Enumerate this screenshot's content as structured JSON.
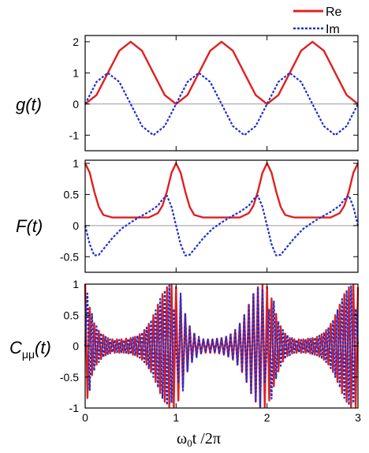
{
  "legend": {
    "re_label": "Re",
    "im_label": "Im",
    "re_color": "#e0201f",
    "im_color": "#1f2fd0"
  },
  "xaxis": {
    "label_main": "ω",
    "label_sub": "0",
    "label_rest": "t /2π",
    "ticks": [
      "0",
      "1",
      "2",
      "3"
    ]
  },
  "chart_data": [
    {
      "type": "line",
      "ylabel": "g(t)",
      "xlim": [
        0,
        3
      ],
      "ylim": [
        -1.5,
        2.2
      ],
      "yticks": [
        "2",
        "1",
        "0",
        "-1"
      ],
      "x": [
        0,
        0.125,
        0.25,
        0.375,
        0.5,
        0.625,
        0.75,
        0.875,
        1.0,
        1.125,
        1.25,
        1.375,
        1.5,
        1.625,
        1.75,
        1.875,
        2.0,
        2.125,
        2.25,
        2.375,
        2.5,
        2.625,
        2.75,
        2.875,
        3.0
      ],
      "series": [
        {
          "name": "Re",
          "values": [
            0,
            0.29,
            1.0,
            1.71,
            2.0,
            1.71,
            1.0,
            0.29,
            0,
            0.29,
            1.0,
            1.71,
            2.0,
            1.71,
            1.0,
            0.29,
            0,
            0.29,
            1.0,
            1.71,
            2.0,
            1.71,
            1.0,
            0.29,
            0
          ]
        },
        {
          "name": "Im",
          "values": [
            0,
            0.71,
            1.0,
            0.71,
            0,
            -0.71,
            -1.0,
            -0.71,
            0,
            0.71,
            1.0,
            0.71,
            0,
            -0.71,
            -1.0,
            -0.71,
            0,
            0.71,
            1.0,
            0.71,
            0,
            -0.71,
            -1.0,
            -0.71,
            0
          ]
        }
      ]
    },
    {
      "type": "line",
      "ylabel": "F(t)",
      "xlim": [
        0,
        3
      ],
      "ylim": [
        -0.75,
        1.05
      ],
      "yticks": [
        "1",
        "0.5",
        "0",
        "-0.5"
      ],
      "x": [
        0,
        0.05,
        0.1,
        0.15,
        0.2,
        0.3,
        0.4,
        0.5,
        0.6,
        0.7,
        0.8,
        0.85,
        0.9,
        0.95,
        1.0,
        1.05,
        1.1,
        1.15,
        1.2,
        1.3,
        1.4,
        1.5,
        1.6,
        1.7,
        1.8,
        1.85,
        1.9,
        1.95,
        2.0,
        2.05,
        2.1,
        2.15,
        2.2,
        2.3,
        2.4,
        2.5,
        2.6,
        2.7,
        2.8,
        2.85,
        2.9,
        2.95,
        3.0
      ],
      "series": [
        {
          "name": "Re",
          "values": [
            1.0,
            0.85,
            0.55,
            0.3,
            0.17,
            0.13,
            0.13,
            0.13,
            0.13,
            0.13,
            0.2,
            0.32,
            0.55,
            0.85,
            1.0,
            0.85,
            0.55,
            0.3,
            0.17,
            0.13,
            0.13,
            0.13,
            0.13,
            0.13,
            0.2,
            0.32,
            0.55,
            0.85,
            1.0,
            0.85,
            0.55,
            0.3,
            0.17,
            0.13,
            0.13,
            0.13,
            0.13,
            0.13,
            0.2,
            0.32,
            0.55,
            0.85,
            1.0
          ]
        },
        {
          "name": "Im",
          "values": [
            0,
            -0.3,
            -0.48,
            -0.47,
            -0.38,
            -0.2,
            -0.05,
            0.05,
            0.14,
            0.22,
            0.32,
            0.42,
            0.48,
            0.3,
            0,
            -0.3,
            -0.48,
            -0.47,
            -0.38,
            -0.2,
            -0.05,
            0.05,
            0.14,
            0.22,
            0.32,
            0.42,
            0.48,
            0.3,
            0,
            -0.3,
            -0.48,
            -0.47,
            -0.38,
            -0.2,
            -0.05,
            0.05,
            0.14,
            0.22,
            0.32,
            0.42,
            0.48,
            0.3,
            0
          ]
        }
      ]
    },
    {
      "type": "line",
      "ylabel": "C",
      "ylabel_sub": "μμ",
      "ylabel_rest": "(t)",
      "xlim": [
        0,
        3
      ],
      "ylim": [
        -1,
        1
      ],
      "yticks": [
        "1",
        "0.5",
        "0",
        "-0.5",
        "-1"
      ],
      "x": [
        0,
        0.025,
        0.05,
        0.075,
        0.1,
        0.125,
        0.15,
        0.175,
        0.2,
        0.225,
        0.25,
        0.275,
        0.3,
        0.325,
        0.35,
        0.375,
        0.4,
        0.425,
        0.45,
        0.475,
        0.5,
        0.525,
        0.55,
        0.575,
        0.6,
        0.625,
        0.65,
        0.675,
        0.7,
        0.725,
        0.75,
        0.775,
        0.8,
        0.825,
        0.85,
        0.875,
        0.9,
        0.925,
        0.95,
        0.975,
        1.0,
        1.025,
        1.05,
        1.075,
        1.1,
        1.125,
        1.15,
        1.175,
        1.2,
        1.225,
        1.25,
        1.275,
        1.3,
        1.325,
        1.35,
        1.375,
        1.4,
        1.425,
        1.45,
        1.475,
        1.5,
        1.525,
        1.55,
        1.575,
        1.6,
        1.625,
        1.65,
        1.675,
        1.7,
        1.725,
        1.75,
        1.775,
        1.8,
        1.825,
        1.85,
        1.875,
        1.9,
        1.925,
        1.95,
        1.975,
        2.0,
        2.025,
        2.05,
        2.075,
        2.1,
        2.125,
        2.15,
        2.175,
        2.2,
        2.225,
        2.25,
        2.275,
        2.3,
        2.325,
        2.35,
        2.375,
        2.4,
        2.425,
        2.45,
        2.475,
        2.5,
        2.525,
        2.55,
        2.575,
        2.6,
        2.625,
        2.65,
        2.675,
        2.7,
        2.725,
        2.75,
        2.775,
        2.8,
        2.825,
        2.85,
        2.875,
        2.9,
        2.925,
        2.95,
        2.975,
        3.0
      ],
      "series": [
        {
          "name": "Re",
          "values": [
            1.0,
            -0.84,
            0.62,
            -0.47,
            0.37,
            -0.3,
            0.25,
            -0.21,
            0.18,
            -0.15,
            0.13,
            -0.12,
            0.11,
            -0.11,
            0.11,
            -0.11,
            0.11,
            -0.11,
            0.12,
            -0.12,
            0.13,
            -0.14,
            0.15,
            -0.17,
            0.19,
            -0.22,
            0.26,
            -0.3,
            0.36,
            -0.42,
            0.5,
            -0.58,
            0.67,
            -0.76,
            0.84,
            -0.9,
            0.95,
            -0.98,
            0.99,
            -0.98,
            0.95,
            -0.88,
            0.77,
            -0.65,
            0.52,
            -0.41,
            0.32,
            -0.25,
            0.2,
            -0.16,
            0.13,
            -0.12,
            0.11,
            -0.11,
            0.11,
            -0.11,
            0.11,
            -0.11,
            0.12,
            -0.12,
            0.13,
            -0.14,
            0.15,
            -0.17,
            0.19,
            -0.22,
            0.26,
            -0.3,
            0.36,
            -0.42,
            0.5,
            -0.58,
            0.67,
            -0.76,
            0.84,
            -0.9,
            0.95,
            -0.98,
            0.99,
            -0.98,
            0.95,
            -0.88,
            0.77,
            -0.65,
            0.52,
            -0.41,
            0.32,
            -0.25,
            0.2,
            -0.16,
            0.13,
            -0.12,
            0.11,
            -0.11,
            0.11,
            -0.11,
            0.11,
            -0.11,
            0.12,
            -0.12,
            0.13,
            -0.14,
            0.15,
            -0.17,
            0.19,
            -0.22,
            0.26,
            -0.3,
            0.36,
            -0.42,
            0.5,
            -0.58,
            0.67,
            -0.76,
            0.84,
            -0.9,
            0.95,
            -0.98,
            0.99,
            -0.98,
            0.95
          ]
        },
        {
          "name": "Im",
          "values": [
            0,
            0.85,
            -0.72,
            0.52,
            -0.4,
            0.32,
            -0.26,
            0.21,
            -0.18,
            0.15,
            -0.13,
            0.11,
            -0.1,
            0.1,
            -0.1,
            0.1,
            -0.1,
            0.1,
            -0.11,
            0.12,
            -0.13,
            0.14,
            -0.15,
            0.17,
            -0.19,
            0.22,
            -0.26,
            0.3,
            -0.36,
            0.42,
            -0.5,
            0.58,
            -0.67,
            0.76,
            -0.84,
            0.9,
            -0.95,
            0.98,
            -0.92,
            0.6,
            0,
            -0.6,
            0.85,
            -0.72,
            0.52,
            -0.4,
            0.32,
            -0.26,
            0.21,
            -0.18,
            0.15,
            -0.13,
            0.11,
            -0.1,
            0.1,
            -0.1,
            0.1,
            -0.1,
            0.11,
            -0.12,
            0.13,
            -0.14,
            0.15,
            -0.17,
            0.19,
            -0.22,
            0.26,
            -0.3,
            0.36,
            -0.42,
            0.5,
            -0.58,
            0.67,
            -0.76,
            0.84,
            -0.9,
            0.95,
            -0.98,
            0.92,
            -0.6,
            0,
            0.6,
            -0.85,
            0.72,
            -0.52,
            0.4,
            -0.32,
            0.26,
            -0.21,
            0.18,
            -0.15,
            0.13,
            -0.11,
            0.1,
            -0.1,
            0.1,
            -0.1,
            0.1,
            -0.11,
            0.12,
            -0.13,
            0.14,
            -0.15,
            0.17,
            -0.19,
            0.22,
            -0.26,
            0.3,
            -0.36,
            0.42,
            -0.5,
            0.58,
            -0.67,
            0.76,
            -0.84,
            0.9,
            -0.95,
            0.98,
            -0.92,
            0.6,
            0
          ]
        }
      ]
    }
  ]
}
